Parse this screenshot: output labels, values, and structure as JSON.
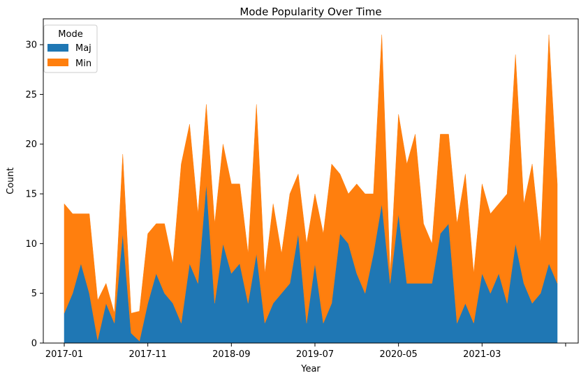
{
  "chart_data": {
    "type": "area",
    "stacked": true,
    "title": "Mode Popularity Over Time",
    "xlabel": "Year",
    "ylabel": "Count",
    "ylim": [
      0,
      32.6
    ],
    "yticks": [
      0,
      5,
      10,
      15,
      20,
      25,
      30
    ],
    "xticks": [
      "2017-01",
      "2017-11",
      "2018-09",
      "2019-07",
      "2020-05",
      "2021-03",
      ""
    ],
    "grid": false,
    "legend": {
      "title": "Mode",
      "position": "top-left"
    },
    "series": [
      {
        "name": "Maj",
        "color": "#1f77b4",
        "values": [
          3,
          5,
          8,
          5,
          0.3,
          4,
          2,
          11,
          1,
          0.2,
          4,
          7,
          5,
          4,
          2,
          8,
          6,
          16,
          4,
          10,
          7,
          8,
          4,
          9,
          2,
          4,
          5,
          6,
          11,
          2,
          8,
          2,
          4,
          11,
          10,
          7,
          5,
          9,
          14,
          6,
          13,
          6,
          6,
          6,
          6,
          11,
          12,
          2,
          4,
          2,
          7,
          5,
          7,
          4,
          10,
          6,
          4,
          5,
          8,
          6
        ]
      },
      {
        "name": "Min",
        "color": "#ff7f0e",
        "values": [
          11,
          8,
          5,
          8,
          4,
          2,
          1,
          8,
          2,
          3,
          7,
          5,
          7,
          4,
          16,
          14,
          7,
          8,
          8,
          10,
          9,
          8,
          5,
          15,
          5,
          10,
          4,
          9,
          6,
          8,
          7,
          9,
          14,
          6,
          5,
          9,
          10,
          6,
          17,
          1,
          10,
          12,
          15,
          6,
          4,
          10,
          9,
          10,
          13,
          5,
          9,
          8,
          7,
          11,
          19,
          8,
          14,
          5,
          23,
          10
        ]
      }
    ]
  }
}
